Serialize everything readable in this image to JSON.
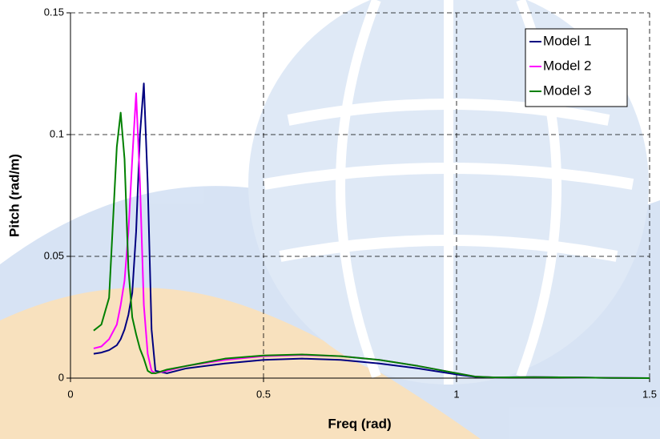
{
  "chart_data": {
    "type": "line",
    "x_label": "Freq (rad)",
    "y_label": "Pitch (rad/m)",
    "x": [
      0.06,
      0.08,
      0.1,
      0.12,
      0.13,
      0.14,
      0.15,
      0.16,
      0.17,
      0.18,
      0.19,
      0.2,
      0.21,
      0.22,
      0.25,
      0.3,
      0.4,
      0.5,
      0.6,
      0.7,
      0.8,
      0.9,
      1.0,
      1.05,
      1.1,
      1.2,
      1.3,
      1.4,
      1.5
    ],
    "series": [
      {
        "name": "Model 1",
        "color": "#000080",
        "values": [
          0.01,
          0.0105,
          0.0115,
          0.0135,
          0.016,
          0.02,
          0.026,
          0.035,
          0.06,
          0.1,
          0.121,
          0.08,
          0.02,
          0.003,
          0.002,
          0.004,
          0.006,
          0.0075,
          0.008,
          0.0075,
          0.006,
          0.004,
          0.0015,
          0.0005,
          0.0003,
          0.0004,
          0.0003,
          0.0001,
          0
        ]
      },
      {
        "name": "Model 2",
        "color": "#ff00ff",
        "values": [
          0.0122,
          0.013,
          0.016,
          0.022,
          0.03,
          0.04,
          0.06,
          0.09,
          0.117,
          0.08,
          0.03,
          0.01,
          0.003,
          0.002,
          0.003,
          0.005,
          0.0075,
          0.009,
          0.0095,
          0.009,
          0.0075,
          0.005,
          0.002,
          0.0006,
          0.0003,
          0.0004,
          0.0003,
          0.0001,
          0
        ]
      },
      {
        "name": "Model 3",
        "color": "#008000",
        "values": [
          0.0195,
          0.022,
          0.033,
          0.095,
          0.109,
          0.09,
          0.045,
          0.025,
          0.018,
          0.012,
          0.008,
          0.003,
          0.002,
          0.002,
          0.0035,
          0.005,
          0.008,
          0.0093,
          0.0097,
          0.009,
          0.0075,
          0.005,
          0.002,
          0.0006,
          0.0003,
          0.0004,
          0.0003,
          0.0001,
          0
        ]
      }
    ],
    "xlim": [
      0,
      1.5
    ],
    "xticks": [
      0,
      0.5,
      1,
      1.5
    ],
    "ylim": [
      0,
      0.15
    ],
    "yticks": [
      0,
      0.05,
      0.1,
      0.15
    ],
    "grid": true,
    "legend": "upper right"
  }
}
